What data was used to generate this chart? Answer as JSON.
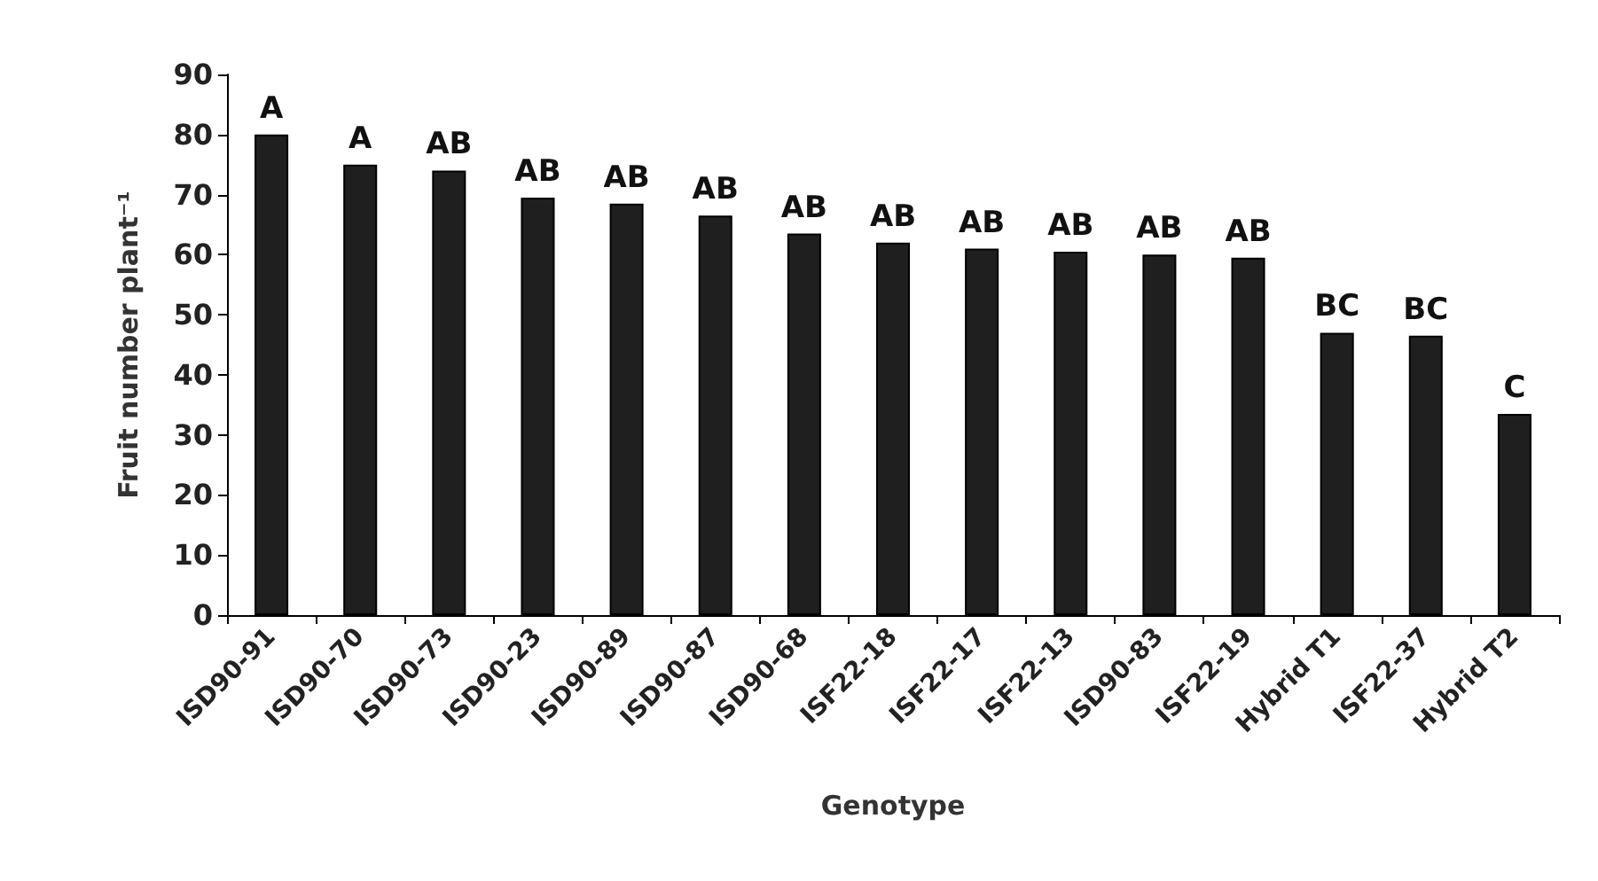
{
  "chart_data": {
    "type": "bar",
    "xlabel": "Genotype",
    "ylabel": "Fruit number plant⁻¹",
    "categories": [
      "ISD90-91",
      "ISD90-70",
      "ISD90-73",
      "ISD90-23",
      "ISD90-89",
      "ISD90-87",
      "ISD90-68",
      "ISF22-18",
      "ISF22-17",
      "ISF22-13",
      "ISD90-83",
      "ISF22-19",
      "Hybrid T1",
      "ISF22-37",
      "Hybrid T2"
    ],
    "values": [
      80,
      75,
      74,
      69.5,
      68.5,
      66.5,
      63.5,
      62,
      61,
      60.5,
      60,
      59.5,
      47,
      46.5,
      33.5
    ],
    "color": "#1f1f1f",
    "ylim": [
      0,
      90
    ],
    "yticks": [
      0,
      10,
      20,
      30,
      40,
      50,
      60,
      70,
      80,
      90
    ],
    "grid": false,
    "annotations": [
      {
        "text": "A",
        "x": "ISD90-91",
        "y": 80
      },
      {
        "text": "A",
        "x": "ISD90-70",
        "y": 75
      },
      {
        "text": "AB",
        "x": "ISD90-73",
        "y": 74
      },
      {
        "text": "AB",
        "x": "ISD90-23",
        "y": 69.5
      },
      {
        "text": "AB",
        "x": "ISD90-89",
        "y": 68.5
      },
      {
        "text": "AB",
        "x": "ISD90-87",
        "y": 66.5
      },
      {
        "text": "AB",
        "x": "ISD90-68",
        "y": 63.5
      },
      {
        "text": "AB",
        "x": "ISF22-18",
        "y": 62
      },
      {
        "text": "AB",
        "x": "ISF22-17",
        "y": 61
      },
      {
        "text": "AB",
        "x": "ISF22-13",
        "y": 60.5
      },
      {
        "text": "AB",
        "x": "ISD90-83",
        "y": 60
      },
      {
        "text": "AB",
        "x": "ISF22-19",
        "y": 59.5
      },
      {
        "text": "BC",
        "x": "Hybrid T1",
        "y": 47
      },
      {
        "text": "BC",
        "x": "ISF22-37",
        "y": 46.5
      },
      {
        "text": "C",
        "x": "Hybrid T2",
        "y": 33.5
      }
    ]
  }
}
